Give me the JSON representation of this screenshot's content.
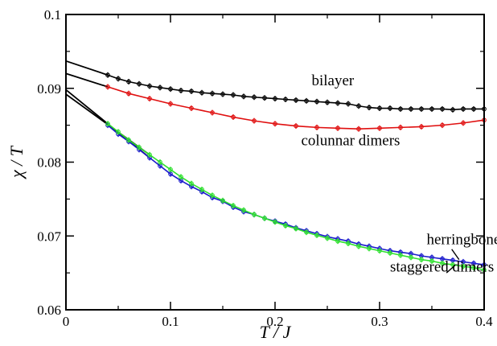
{
  "chart_data": {
    "type": "line",
    "title": "",
    "xlabel": "T / J",
    "ylabel": "χ / T",
    "xlim": [
      0,
      0.4
    ],
    "ylim": [
      0.06,
      0.1
    ],
    "xticks": [
      0,
      0.1,
      0.2,
      0.3,
      0.4
    ],
    "xtick_labels": [
      "0",
      "0.1",
      "0.2",
      "0.3",
      "0.4"
    ],
    "yticks": [
      0.06,
      0.07,
      0.08,
      0.09,
      0.1
    ],
    "ytick_labels": [
      "0.06",
      "0.07",
      "0.08",
      "0.09",
      "0.1"
    ],
    "grid": false,
    "legend": "none",
    "series": [
      {
        "name": "bilayer",
        "color": "#000000",
        "points": [
          [
            0.04,
            0.0918
          ],
          [
            0.05,
            0.0913
          ],
          [
            0.06,
            0.0909
          ],
          [
            0.07,
            0.0906
          ],
          [
            0.08,
            0.0903
          ],
          [
            0.09,
            0.0901
          ],
          [
            0.1,
            0.0899
          ],
          [
            0.11,
            0.0897
          ],
          [
            0.12,
            0.0896
          ],
          [
            0.13,
            0.0894
          ],
          [
            0.14,
            0.0893
          ],
          [
            0.15,
            0.0892
          ],
          [
            0.16,
            0.0891
          ],
          [
            0.17,
            0.0889
          ],
          [
            0.18,
            0.0888
          ],
          [
            0.19,
            0.0887
          ],
          [
            0.2,
            0.0886
          ],
          [
            0.21,
            0.0885
          ],
          [
            0.22,
            0.0884
          ],
          [
            0.23,
            0.0883
          ],
          [
            0.24,
            0.0882
          ],
          [
            0.25,
            0.0881
          ],
          [
            0.26,
            0.088
          ],
          [
            0.27,
            0.0879
          ],
          [
            0.28,
            0.0876
          ],
          [
            0.29,
            0.0874
          ],
          [
            0.3,
            0.0873
          ],
          [
            0.31,
            0.0873
          ],
          [
            0.32,
            0.0872
          ],
          [
            0.33,
            0.0872
          ],
          [
            0.34,
            0.0872
          ],
          [
            0.35,
            0.0872
          ],
          [
            0.36,
            0.0872
          ],
          [
            0.37,
            0.0871
          ],
          [
            0.38,
            0.0872
          ],
          [
            0.39,
            0.0872
          ],
          [
            0.4,
            0.0872
          ]
        ]
      },
      {
        "name": "colunnar dimers",
        "color": "#e01010",
        "points": [
          [
            0.04,
            0.0902
          ],
          [
            0.06,
            0.0893
          ],
          [
            0.08,
            0.0886
          ],
          [
            0.1,
            0.0879
          ],
          [
            0.12,
            0.0873
          ],
          [
            0.14,
            0.0867
          ],
          [
            0.16,
            0.0861
          ],
          [
            0.18,
            0.0856
          ],
          [
            0.2,
            0.0852
          ],
          [
            0.22,
            0.0849
          ],
          [
            0.24,
            0.0847
          ],
          [
            0.26,
            0.0846
          ],
          [
            0.28,
            0.0845
          ],
          [
            0.3,
            0.0846
          ],
          [
            0.32,
            0.0847
          ],
          [
            0.34,
            0.0848
          ],
          [
            0.36,
            0.085
          ],
          [
            0.38,
            0.0853
          ],
          [
            0.4,
            0.0857
          ]
        ]
      },
      {
        "name": "herringbone",
        "color": "#1a1acc",
        "points": [
          [
            0.04,
            0.085
          ],
          [
            0.05,
            0.0838
          ],
          [
            0.06,
            0.0828
          ],
          [
            0.07,
            0.0817
          ],
          [
            0.08,
            0.0806
          ],
          [
            0.09,
            0.0795
          ],
          [
            0.1,
            0.0784
          ],
          [
            0.11,
            0.0775
          ],
          [
            0.12,
            0.0767
          ],
          [
            0.13,
            0.076
          ],
          [
            0.14,
            0.0752
          ],
          [
            0.15,
            0.0747
          ],
          [
            0.16,
            0.0739
          ],
          [
            0.17,
            0.0733
          ],
          [
            0.18,
            0.0729
          ],
          [
            0.19,
            0.0724
          ],
          [
            0.2,
            0.072
          ],
          [
            0.21,
            0.0716
          ],
          [
            0.22,
            0.0711
          ],
          [
            0.23,
            0.0707
          ],
          [
            0.24,
            0.0703
          ],
          [
            0.25,
            0.0699
          ],
          [
            0.26,
            0.0696
          ],
          [
            0.27,
            0.0693
          ],
          [
            0.28,
            0.0689
          ],
          [
            0.29,
            0.0686
          ],
          [
            0.3,
            0.0683
          ],
          [
            0.31,
            0.068
          ],
          [
            0.32,
            0.0678
          ],
          [
            0.33,
            0.0676
          ],
          [
            0.34,
            0.0673
          ],
          [
            0.35,
            0.0671
          ],
          [
            0.36,
            0.0669
          ],
          [
            0.37,
            0.0667
          ],
          [
            0.38,
            0.0665
          ],
          [
            0.39,
            0.0663
          ],
          [
            0.4,
            0.0661
          ]
        ]
      },
      {
        "name": "staggered dimers",
        "color": "#2ee02e",
        "points": [
          [
            0.04,
            0.0852
          ],
          [
            0.05,
            0.0841
          ],
          [
            0.06,
            0.083
          ],
          [
            0.07,
            0.082
          ],
          [
            0.08,
            0.081
          ],
          [
            0.09,
            0.08
          ],
          [
            0.1,
            0.079
          ],
          [
            0.11,
            0.078
          ],
          [
            0.12,
            0.0771
          ],
          [
            0.13,
            0.0763
          ],
          [
            0.14,
            0.0755
          ],
          [
            0.15,
            0.0748
          ],
          [
            0.16,
            0.0741
          ],
          [
            0.17,
            0.0735
          ],
          [
            0.18,
            0.0729
          ],
          [
            0.19,
            0.0724
          ],
          [
            0.2,
            0.0719
          ],
          [
            0.21,
            0.0714
          ],
          [
            0.22,
            0.071
          ],
          [
            0.23,
            0.0705
          ],
          [
            0.24,
            0.0701
          ],
          [
            0.25,
            0.0697
          ],
          [
            0.26,
            0.0693
          ],
          [
            0.27,
            0.069
          ],
          [
            0.28,
            0.0686
          ],
          [
            0.29,
            0.0683
          ],
          [
            0.3,
            0.068
          ],
          [
            0.31,
            0.0677
          ],
          [
            0.32,
            0.0674
          ],
          [
            0.33,
            0.0671
          ],
          [
            0.34,
            0.0668
          ],
          [
            0.35,
            0.0666
          ],
          [
            0.36,
            0.0663
          ],
          [
            0.37,
            0.0661
          ],
          [
            0.38,
            0.0659
          ],
          [
            0.39,
            0.0657
          ],
          [
            0.4,
            0.0654
          ]
        ]
      }
    ],
    "fits": [
      {
        "color": "#000000",
        "points": [
          [
            0.0,
            0.0937
          ],
          [
            0.04,
            0.0918
          ]
        ]
      },
      {
        "color": "#000000",
        "points": [
          [
            0.0,
            0.092
          ],
          [
            0.04,
            0.0902
          ]
        ]
      },
      {
        "color": "#000000",
        "points": [
          [
            0.0,
            0.0898
          ],
          [
            0.08,
            0.0806
          ]
        ]
      },
      {
        "color": "#000000",
        "points": [
          [
            0.0,
            0.0892
          ],
          [
            0.08,
            0.081
          ]
        ]
      }
    ],
    "annotations": [
      {
        "text": "bilayer",
        "x": 0.235,
        "y": 0.0904
      },
      {
        "text": "colunnar dimers",
        "x": 0.225,
        "y": 0.0823
      },
      {
        "text": "herringbone",
        "x": 0.345,
        "y": 0.0689
      },
      {
        "text": "staggered dimers",
        "x": 0.31,
        "y": 0.0652
      }
    ],
    "pointers": [
      {
        "from": [
          0.369,
          0.0682
        ],
        "to": [
          0.376,
          0.0668
        ]
      },
      {
        "from": [
          0.364,
          0.065
        ],
        "to": [
          0.372,
          0.066
        ]
      }
    ]
  }
}
